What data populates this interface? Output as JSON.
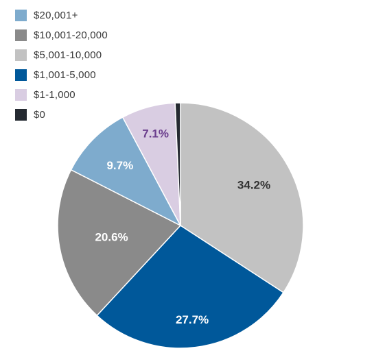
{
  "chart_data": {
    "type": "pie",
    "legend_position": "top-left",
    "start": "12 o'clock, clockwise",
    "slices": [
      {
        "label": "$5,001-10,000",
        "value": 34.2,
        "display": "34.2%",
        "color": "#c2c2c2",
        "label_color": "#333333"
      },
      {
        "label": "$1,001-5,000",
        "value": 27.7,
        "display": "27.7%",
        "color": "#00589a",
        "label_color": "#ffffff"
      },
      {
        "label": "$10,001-20,000",
        "value": 20.6,
        "display": "20.6%",
        "color": "#8a8a8a",
        "label_color": "#ffffff"
      },
      {
        "label": "$20,001+",
        "value": 9.7,
        "display": "9.7%",
        "color": "#7eabcd",
        "label_color": "#ffffff"
      },
      {
        "label": "$1-1,000",
        "value": 7.1,
        "display": "7.1%",
        "color": "#d9cde2",
        "label_color": "#6a3d8c"
      },
      {
        "label": "$0",
        "value": 0.7,
        "display": "",
        "color": "#252a31",
        "label_color": "#ffffff"
      }
    ],
    "legend": [
      {
        "label": "$20,001+",
        "color": "#7eabcd"
      },
      {
        "label": "$10,001-20,000",
        "color": "#8a8a8a"
      },
      {
        "label": "$5,001-10,000",
        "color": "#c2c2c2"
      },
      {
        "label": "$1,001-5,000",
        "color": "#00589a"
      },
      {
        "label": "$1-1,000",
        "color": "#d9cde2"
      },
      {
        "label": "$0",
        "color": "#252a31"
      }
    ]
  }
}
